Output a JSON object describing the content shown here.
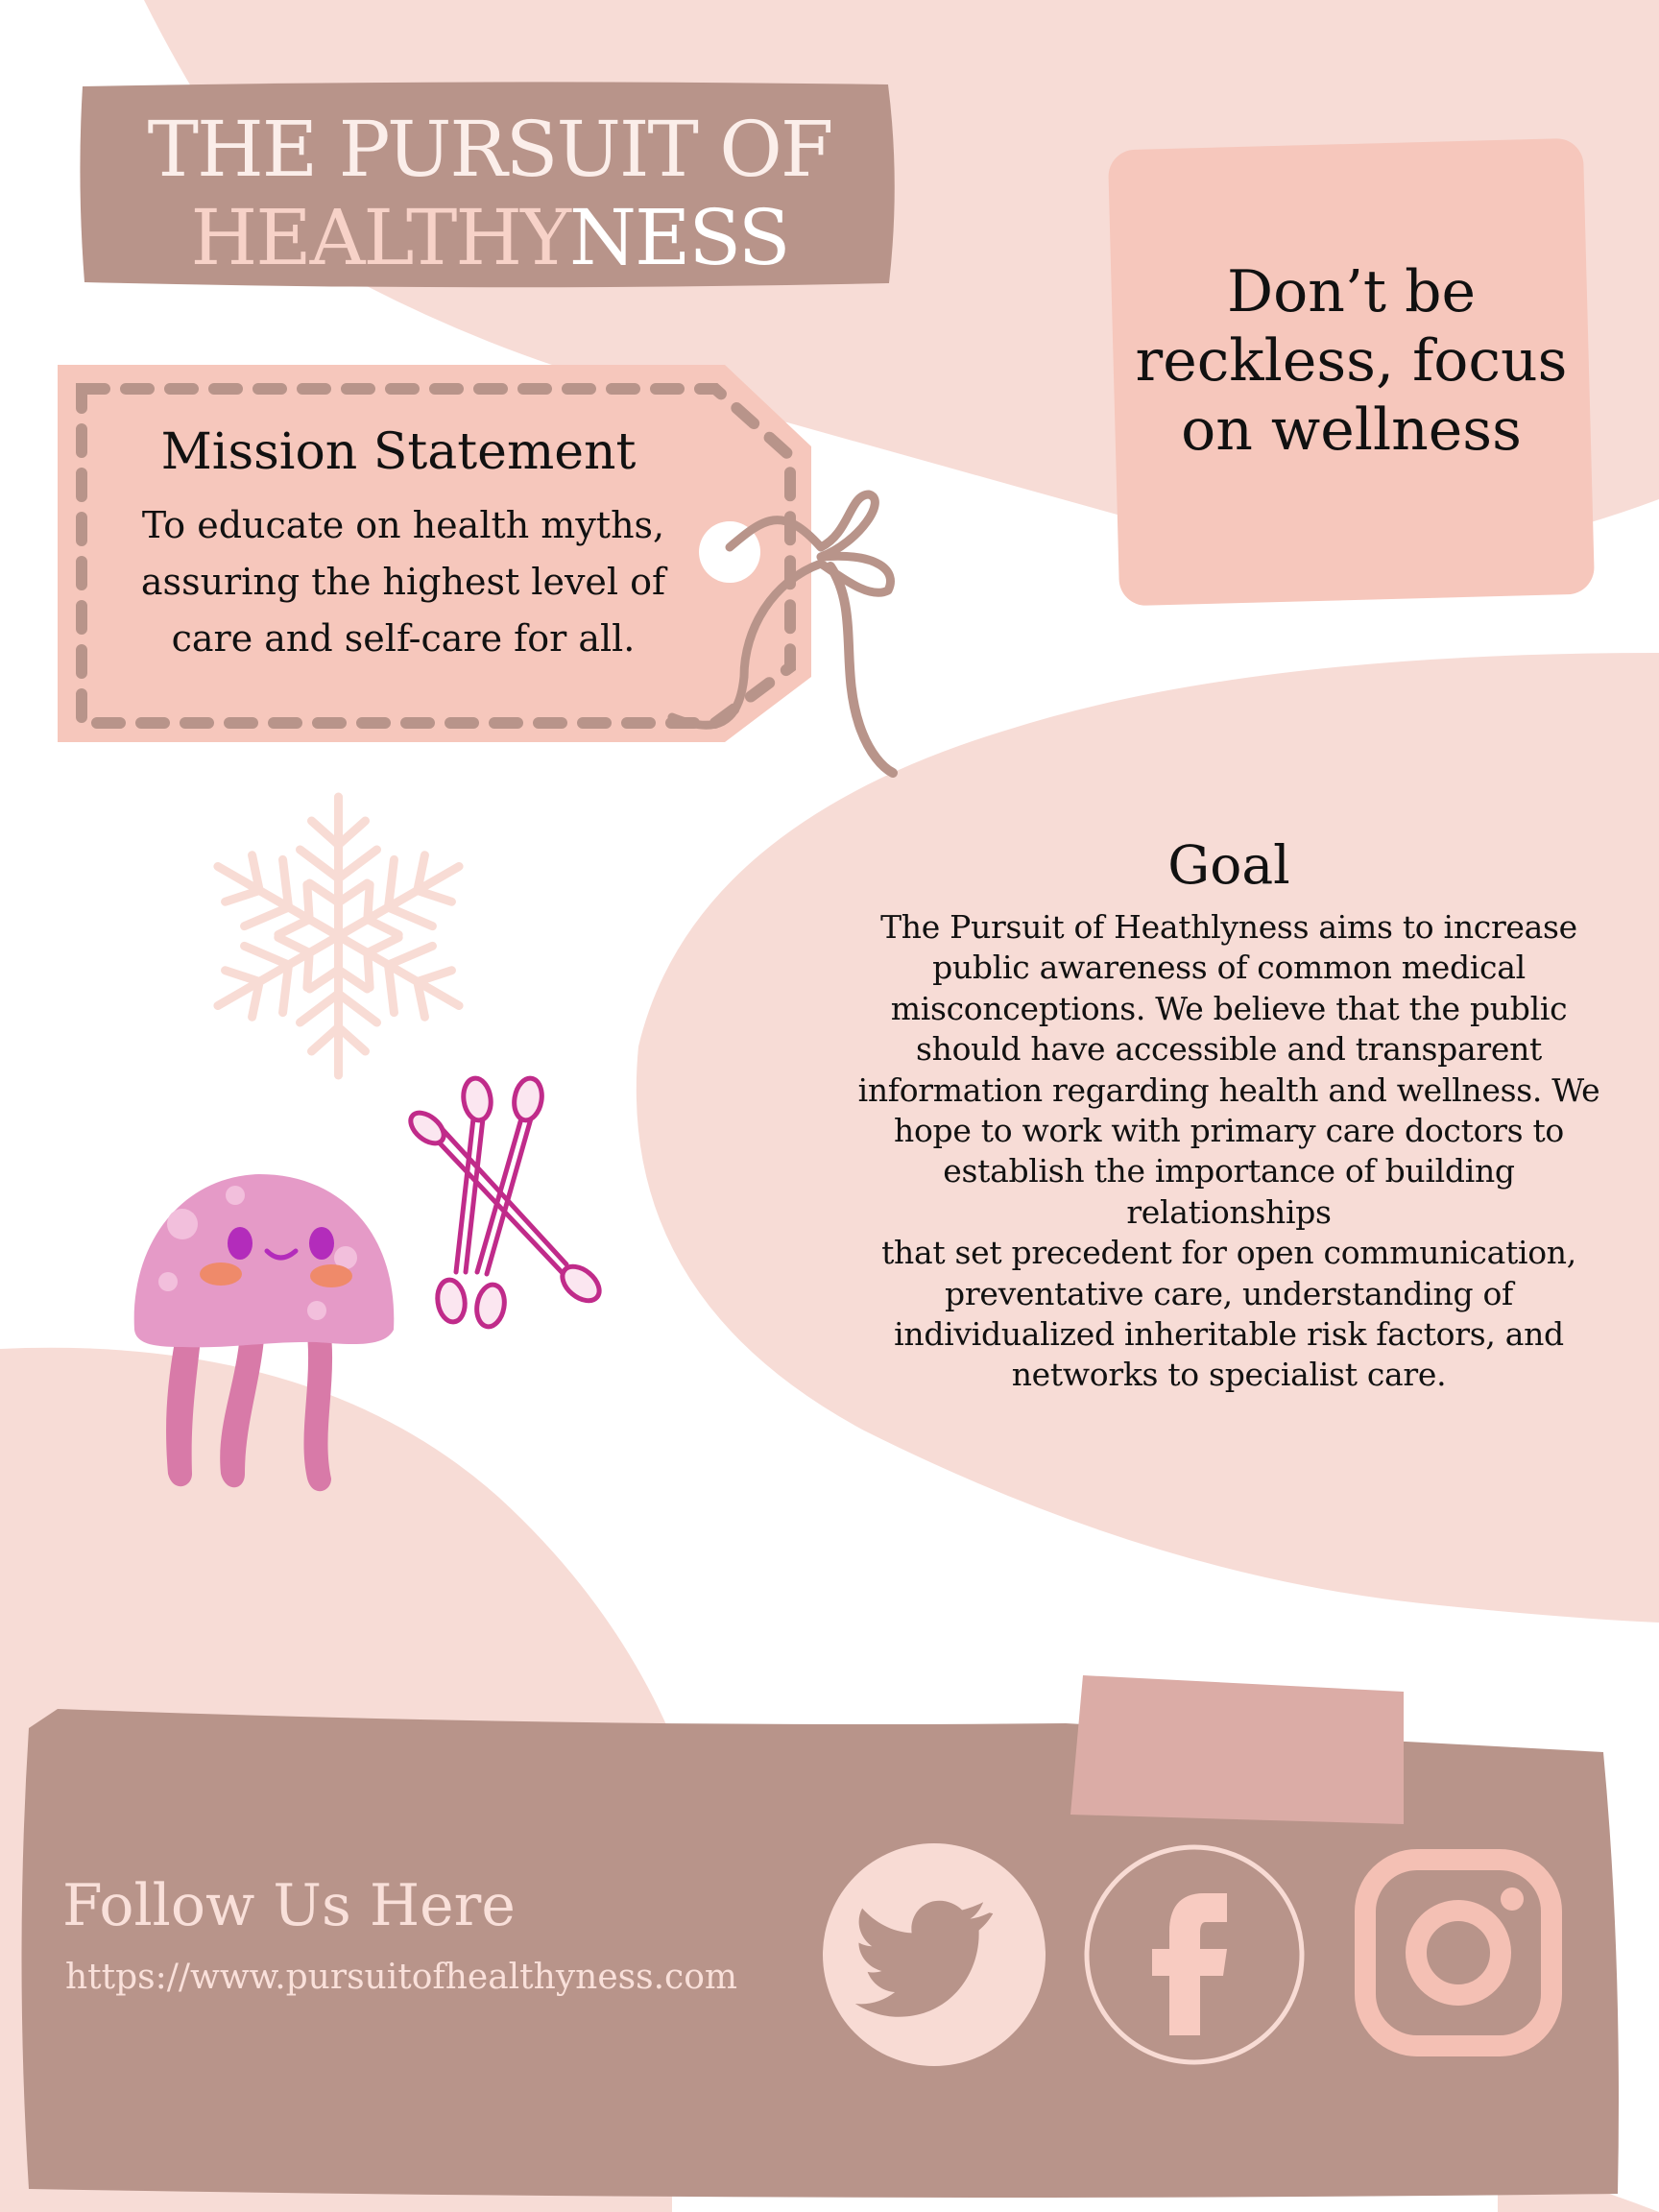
{
  "header": {
    "title_line1": "THE PURSUIT OF",
    "title_line2_part1": "HEALTHY",
    "title_line2_part2": "NESS"
  },
  "quote": {
    "line1": "Don’t be",
    "line2": "reckless, focus",
    "line3": "on wellness"
  },
  "mission": {
    "title": "Mission Statement",
    "line1": "To educate on health myths,",
    "line2": "assuring the highest level of",
    "line3": "care and self-care for all."
  },
  "goal": {
    "title": "Goal",
    "lines": [
      "The Pursuit of Heathlyness aims to increase",
      "public awareness of common medical",
      "misconceptions. We believe that the public",
      "should have accessible and transparent",
      "information regarding health and wellness. We",
      "hope to work with primary care doctors to",
      "establish the importance of building relationships",
      "that set precedent for open communication,",
      "preventative care, understanding of",
      "individualized inheritable risk factors, and",
      "networks to specialist care."
    ]
  },
  "footer": {
    "follow_label": "Follow Us Here",
    "url": "https://www.pursuitofhealthyness.com",
    "social_icons": [
      "twitter-icon",
      "facebook-icon",
      "instagram-icon"
    ]
  },
  "colors": {
    "background": "#ffffff",
    "blob": "#f7dcd6",
    "banner": "#b8948a",
    "tag": "#f6c7bc",
    "accent_pink": "#c02b8a"
  },
  "decorations": [
    "snowflake-icon",
    "jellyfish-illustration",
    "cotton-swabs-icon",
    "string-icon"
  ]
}
